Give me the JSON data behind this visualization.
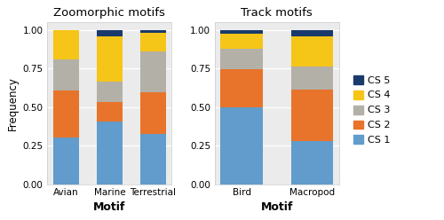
{
  "zoo_categories": [
    "Avian",
    "Marine",
    "Terrestrial"
  ],
  "track_categories": [
    "Bird",
    "Macropod"
  ],
  "zoo_data": {
    "CS 1": [
      0.305,
      0.405,
      0.328
    ],
    "CS 2": [
      0.305,
      0.13,
      0.27
    ],
    "CS 3": [
      0.2,
      0.13,
      0.265
    ],
    "CS 4": [
      0.19,
      0.295,
      0.12
    ],
    "CS 5": [
      0.0,
      0.04,
      0.017
    ]
  },
  "track_data": {
    "CS 1": [
      0.5,
      0.28
    ],
    "CS 2": [
      0.248,
      0.335
    ],
    "CS 3": [
      0.13,
      0.15
    ],
    "CS 4": [
      0.1,
      0.195
    ],
    "CS 5": [
      0.022,
      0.04
    ]
  },
  "colors": {
    "CS 1": "#619CCC",
    "CS 2": "#E8732A",
    "CS 3": "#B3B0A8",
    "CS 4": "#F5C518",
    "CS 5": "#1A3A6B"
  },
  "zoo_title": "Zoomorphic motifs",
  "track_title": "Track motifs",
  "xlabel": "Motif",
  "ylabel": "Frequency",
  "panel_bg": "#EBEBEB",
  "fig_bg": "#FFFFFF",
  "bar_width": 0.6,
  "ylim": [
    0.0,
    1.05
  ],
  "yticks": [
    0.0,
    0.25,
    0.5,
    0.75,
    1.0
  ],
  "ytick_labels": [
    "0.00",
    "0.25",
    "0.50",
    "0.75",
    "1.00"
  ]
}
